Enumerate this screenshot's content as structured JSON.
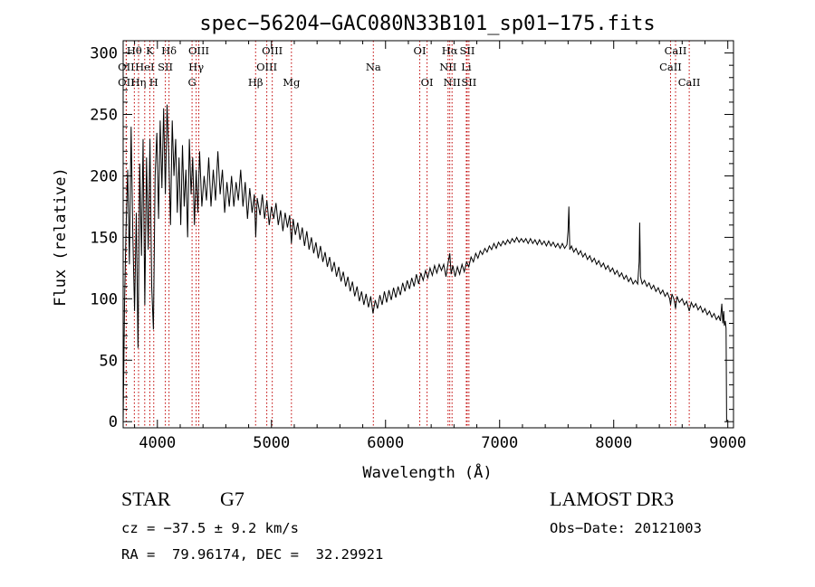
{
  "chart_data": {
    "type": "line",
    "title": "spec−56204−GAC080N33B101_sp01−175.fits",
    "xlabel": "Wavelength (Å)",
    "ylabel": "Flux (relative)",
    "xlim": [
      3700,
      9050
    ],
    "ylim": [
      -5,
      310
    ],
    "x_ticks": [
      4000,
      5000,
      6000,
      7000,
      8000,
      9000
    ],
    "y_ticks": [
      0,
      50,
      100,
      150,
      200,
      250,
      300
    ],
    "series": [
      {
        "name": "spectrum",
        "points": [
          [
            3700,
            0
          ],
          [
            3712,
            95
          ],
          [
            3725,
            155
          ],
          [
            3740,
            205
          ],
          [
            3755,
            128
          ],
          [
            3770,
            240
          ],
          [
            3785,
            150
          ],
          [
            3800,
            90
          ],
          [
            3815,
            170
          ],
          [
            3830,
            60
          ],
          [
            3845,
            210
          ],
          [
            3860,
            135
          ],
          [
            3875,
            230
          ],
          [
            3890,
            95
          ],
          [
            3905,
            215
          ],
          [
            3920,
            140
          ],
          [
            3935,
            230
          ],
          [
            3950,
            110
          ],
          [
            3965,
            75
          ],
          [
            3980,
            200
          ],
          [
            3995,
            235
          ],
          [
            4010,
            165
          ],
          [
            4025,
            245
          ],
          [
            4040,
            190
          ],
          [
            4055,
            255
          ],
          [
            4070,
            185
          ],
          [
            4085,
            258
          ],
          [
            4100,
            215
          ],
          [
            4115,
            160
          ],
          [
            4130,
            245
          ],
          [
            4145,
            200
          ],
          [
            4160,
            230
          ],
          [
            4175,
            170
          ],
          [
            4190,
            215
          ],
          [
            4205,
            160
          ],
          [
            4220,
            225
          ],
          [
            4235,
            175
          ],
          [
            4250,
            205
          ],
          [
            4265,
            150
          ],
          [
            4280,
            230
          ],
          [
            4295,
            185
          ],
          [
            4310,
            215
          ],
          [
            4325,
            160
          ],
          [
            4340,
            205
          ],
          [
            4355,
            170
          ],
          [
            4370,
            220
          ],
          [
            4390,
            175
          ],
          [
            4410,
            200
          ],
          [
            4430,
            180
          ],
          [
            4450,
            215
          ],
          [
            4470,
            175
          ],
          [
            4490,
            205
          ],
          [
            4510,
            180
          ],
          [
            4530,
            220
          ],
          [
            4550,
            185
          ],
          [
            4570,
            205
          ],
          [
            4590,
            170
          ],
          [
            4610,
            195
          ],
          [
            4630,
            175
          ],
          [
            4650,
            200
          ],
          [
            4670,
            175
          ],
          [
            4690,
            195
          ],
          [
            4710,
            180
          ],
          [
            4730,
            205
          ],
          [
            4750,
            175
          ],
          [
            4770,
            195
          ],
          [
            4790,
            165
          ],
          [
            4810,
            190
          ],
          [
            4830,
            170
          ],
          [
            4850,
            185
          ],
          [
            4862,
            150
          ],
          [
            4875,
            182
          ],
          [
            4900,
            168
          ],
          [
            4920,
            185
          ],
          [
            4940,
            165
          ],
          [
            4960,
            180
          ],
          [
            4980,
            160
          ],
          [
            5000,
            175
          ],
          [
            5020,
            165
          ],
          [
            5040,
            178
          ],
          [
            5060,
            160
          ],
          [
            5080,
            172
          ],
          [
            5100,
            155
          ],
          [
            5120,
            170
          ],
          [
            5140,
            158
          ],
          [
            5160,
            168
          ],
          [
            5175,
            145
          ],
          [
            5190,
            165
          ],
          [
            5210,
            152
          ],
          [
            5230,
            162
          ],
          [
            5250,
            148
          ],
          [
            5270,
            158
          ],
          [
            5290,
            143
          ],
          [
            5310,
            155
          ],
          [
            5330,
            140
          ],
          [
            5350,
            150
          ],
          [
            5370,
            137
          ],
          [
            5390,
            146
          ],
          [
            5410,
            133
          ],
          [
            5430,
            143
          ],
          [
            5450,
            130
          ],
          [
            5470,
            138
          ],
          [
            5490,
            126
          ],
          [
            5510,
            134
          ],
          [
            5530,
            122
          ],
          [
            5550,
            130
          ],
          [
            5570,
            118
          ],
          [
            5590,
            126
          ],
          [
            5610,
            114
          ],
          [
            5630,
            122
          ],
          [
            5650,
            110
          ],
          [
            5670,
            118
          ],
          [
            5690,
            106
          ],
          [
            5710,
            114
          ],
          [
            5730,
            102
          ],
          [
            5750,
            110
          ],
          [
            5770,
            98
          ],
          [
            5790,
            106
          ],
          [
            5810,
            95
          ],
          [
            5830,
            104
          ],
          [
            5850,
            93
          ],
          [
            5870,
            102
          ],
          [
            5890,
            88
          ],
          [
            5910,
            99
          ],
          [
            5930,
            92
          ],
          [
            5950,
            103
          ],
          [
            5970,
            95
          ],
          [
            5990,
            106
          ],
          [
            6010,
            97
          ],
          [
            6030,
            107
          ],
          [
            6050,
            99
          ],
          [
            6070,
            109
          ],
          [
            6090,
            101
          ],
          [
            6110,
            110
          ],
          [
            6130,
            103
          ],
          [
            6150,
            113
          ],
          [
            6170,
            106
          ],
          [
            6190,
            115
          ],
          [
            6210,
            108
          ],
          [
            6230,
            117
          ],
          [
            6250,
            110
          ],
          [
            6270,
            120
          ],
          [
            6290,
            112
          ],
          [
            6310,
            121
          ],
          [
            6330,
            115
          ],
          [
            6350,
            123
          ],
          [
            6370,
            117
          ],
          [
            6390,
            125
          ],
          [
            6410,
            119
          ],
          [
            6430,
            127
          ],
          [
            6450,
            121
          ],
          [
            6470,
            128
          ],
          [
            6490,
            123
          ],
          [
            6510,
            128
          ],
          [
            6530,
            118
          ],
          [
            6550,
            130
          ],
          [
            6563,
            137
          ],
          [
            6575,
            120
          ],
          [
            6590,
            127
          ],
          [
            6610,
            118
          ],
          [
            6630,
            126
          ],
          [
            6650,
            120
          ],
          [
            6670,
            128
          ],
          [
            6690,
            122
          ],
          [
            6710,
            130
          ],
          [
            6730,
            126
          ],
          [
            6750,
            134
          ],
          [
            6770,
            130
          ],
          [
            6790,
            137
          ],
          [
            6810,
            133
          ],
          [
            6830,
            139
          ],
          [
            6850,
            136
          ],
          [
            6870,
            141
          ],
          [
            6890,
            138
          ],
          [
            6910,
            143
          ],
          [
            6930,
            140
          ],
          [
            6950,
            145
          ],
          [
            6970,
            141
          ],
          [
            6990,
            146
          ],
          [
            7010,
            143
          ],
          [
            7030,
            147
          ],
          [
            7050,
            144
          ],
          [
            7070,
            148
          ],
          [
            7090,
            145
          ],
          [
            7110,
            149
          ],
          [
            7130,
            146
          ],
          [
            7150,
            150
          ],
          [
            7170,
            146
          ],
          [
            7190,
            149
          ],
          [
            7210,
            146
          ],
          [
            7230,
            149
          ],
          [
            7250,
            145
          ],
          [
            7270,
            149
          ],
          [
            7290,
            145
          ],
          [
            7310,
            148
          ],
          [
            7330,
            144
          ],
          [
            7350,
            148
          ],
          [
            7370,
            144
          ],
          [
            7390,
            147
          ],
          [
            7410,
            143
          ],
          [
            7430,
            147
          ],
          [
            7450,
            143
          ],
          [
            7470,
            146
          ],
          [
            7490,
            142
          ],
          [
            7510,
            145
          ],
          [
            7530,
            141
          ],
          [
            7550,
            145
          ],
          [
            7570,
            141
          ],
          [
            7590,
            144
          ],
          [
            7600,
            155
          ],
          [
            7607,
            175
          ],
          [
            7615,
            140
          ],
          [
            7630,
            143
          ],
          [
            7650,
            138
          ],
          [
            7670,
            141
          ],
          [
            7690,
            136
          ],
          [
            7710,
            139
          ],
          [
            7730,
            134
          ],
          [
            7750,
            137
          ],
          [
            7770,
            132
          ],
          [
            7790,
            135
          ],
          [
            7810,
            130
          ],
          [
            7830,
            133
          ],
          [
            7850,
            128
          ],
          [
            7870,
            131
          ],
          [
            7890,
            126
          ],
          [
            7910,
            129
          ],
          [
            7930,
            124
          ],
          [
            7950,
            127
          ],
          [
            7970,
            122
          ],
          [
            7990,
            125
          ],
          [
            8010,
            120
          ],
          [
            8030,
            123
          ],
          [
            8050,
            118
          ],
          [
            8070,
            121
          ],
          [
            8090,
            116
          ],
          [
            8110,
            119
          ],
          [
            8130,
            114
          ],
          [
            8150,
            117
          ],
          [
            8170,
            112
          ],
          [
            8190,
            115
          ],
          [
            8210,
            112
          ],
          [
            8223,
            130
          ],
          [
            8228,
            162
          ],
          [
            8235,
            118
          ],
          [
            8250,
            112
          ],
          [
            8270,
            115
          ],
          [
            8290,
            110
          ],
          [
            8310,
            113
          ],
          [
            8330,
            108
          ],
          [
            8350,
            111
          ],
          [
            8370,
            106
          ],
          [
            8390,
            109
          ],
          [
            8410,
            104
          ],
          [
            8430,
            107
          ],
          [
            8450,
            102
          ],
          [
            8470,
            105
          ],
          [
            8490,
            100
          ],
          [
            8498,
            95
          ],
          [
            8510,
            104
          ],
          [
            8530,
            99
          ],
          [
            8542,
            92
          ],
          [
            8555,
            102
          ],
          [
            8575,
            97
          ],
          [
            8600,
            100
          ],
          [
            8620,
            95
          ],
          [
            8640,
            98
          ],
          [
            8662,
            90
          ],
          [
            8680,
            97
          ],
          [
            8700,
            93
          ],
          [
            8720,
            96
          ],
          [
            8740,
            91
          ],
          [
            8760,
            94
          ],
          [
            8780,
            89
          ],
          [
            8800,
            92
          ],
          [
            8820,
            87
          ],
          [
            8840,
            90
          ],
          [
            8860,
            85
          ],
          [
            8880,
            88
          ],
          [
            8900,
            83
          ],
          [
            8920,
            86
          ],
          [
            8935,
            82
          ],
          [
            8948,
            96
          ],
          [
            8956,
            80
          ],
          [
            8964,
            90
          ],
          [
            8970,
            78
          ],
          [
            8978,
            82
          ],
          [
            8985,
            76
          ],
          [
            8990,
            0
          ]
        ]
      }
    ],
    "lines": [
      {
        "row": 2,
        "text": "OII",
        "wave": 3727
      },
      {
        "row": 3,
        "text": "OII",
        "wave": 3727
      },
      {
        "row": 1,
        "text": "Hθ",
        "wave": 3798
      },
      {
        "row": 3,
        "text": "Hη",
        "wave": 3835
      },
      {
        "row": 2,
        "text": "HeI",
        "wave": 3889
      },
      {
        "row": 1,
        "text": "K",
        "wave": 3934
      },
      {
        "row": 2,
        "text": "SII",
        "wave": 4070
      },
      {
        "row": 3,
        "text": "H",
        "wave": 3968
      },
      {
        "row": 1,
        "text": "Hδ",
        "wave": 4102
      },
      {
        "row": 2,
        "text": "Hγ",
        "wave": 4340
      },
      {
        "row": 1,
        "text": "OIII",
        "wave": 4363
      },
      {
        "row": 3,
        "text": "G",
        "wave": 4304
      },
      {
        "row": 3,
        "text": "Hβ",
        "wave": 4861
      },
      {
        "row": 1,
        "text": "OIII",
        "wave": 5007
      },
      {
        "row": 2,
        "text": "OIII",
        "wave": 4959
      },
      {
        "row": 3,
        "text": "Mg",
        "wave": 5175
      },
      {
        "row": 2,
        "text": "Na",
        "wave": 5893
      },
      {
        "row": 1,
        "text": "OI",
        "wave": 6300
      },
      {
        "row": 3,
        "text": "OI",
        "wave": 6364
      },
      {
        "row": 1,
        "text": "Hα",
        "wave": 6563
      },
      {
        "row": 2,
        "text": "NII",
        "wave": 6548
      },
      {
        "row": 3,
        "text": "NII",
        "wave": 6583
      },
      {
        "row": 1,
        "text": "SII",
        "wave": 6716
      },
      {
        "row": 2,
        "text": "Li",
        "wave": 6708
      },
      {
        "row": 3,
        "text": "SII",
        "wave": 6731
      },
      {
        "row": 1,
        "text": "CaII",
        "wave": 8542
      },
      {
        "row": 2,
        "text": "CaII",
        "wave": 8498
      },
      {
        "row": 3,
        "text": "CaII",
        "wave": 8662
      }
    ]
  },
  "info": {
    "object_class": "STAR",
    "subclass": "G7",
    "survey": "LAMOST DR3",
    "velocity": "cz = −37.5 ± 9.2 km/s",
    "obs_date": "Obs−Date: 20121003",
    "coords": "RA =  79.96174, DEC =  32.29921"
  }
}
